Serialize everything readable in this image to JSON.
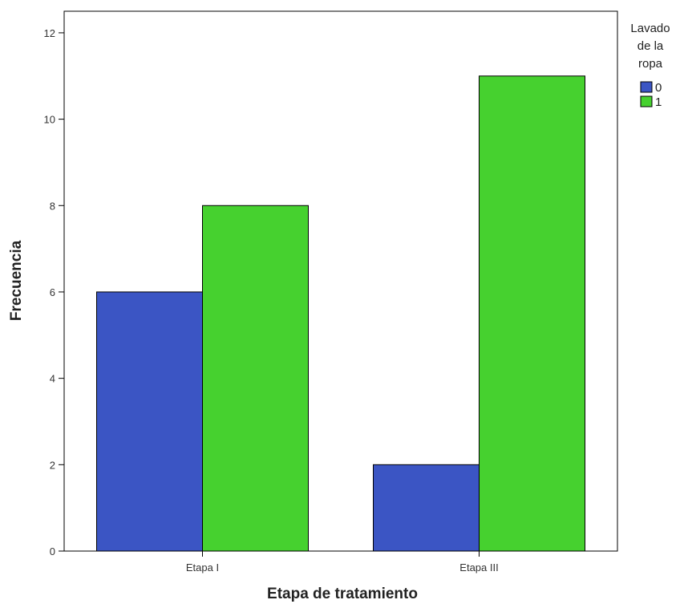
{
  "chart_data": {
    "type": "bar",
    "categories": [
      "Etapa I",
      "Etapa III"
    ],
    "series": [
      {
        "name": "0",
        "values": [
          6,
          2
        ],
        "color": "#3b55c4"
      },
      {
        "name": "1",
        "values": [
          8,
          11
        ],
        "color": "#46d12f"
      }
    ],
    "xlabel": "Etapa de tratamiento",
    "ylabel": "Frecuencia",
    "ylim": [
      0,
      12.5
    ],
    "yticks": [
      0,
      2,
      4,
      6,
      8,
      10,
      12
    ],
    "legend": {
      "title_lines": [
        "Lavado",
        "de la",
        "ropa"
      ],
      "position": "right"
    },
    "grid": false
  }
}
